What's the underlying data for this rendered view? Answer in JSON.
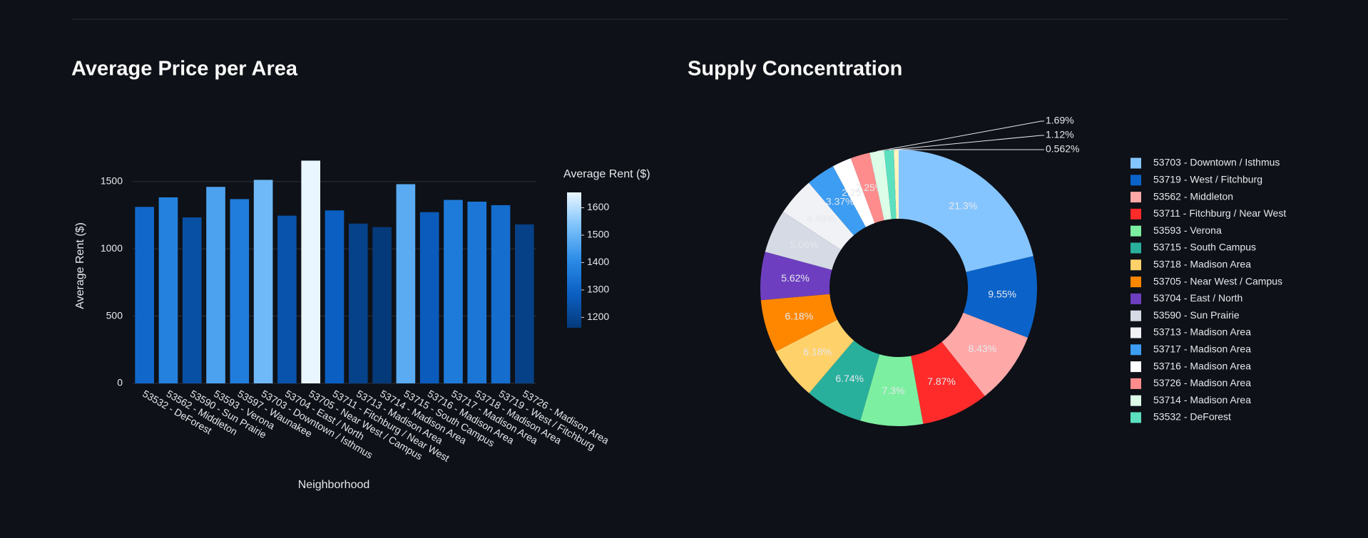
{
  "chart_data": [
    {
      "type": "bar",
      "title": "Average Price per Area",
      "x_label": "Neighborhood",
      "y_label": "Average Rent ($)",
      "categories": [
        "53532 - DeForest",
        "53562 - Middleton",
        "53590 - Sun Prairie",
        "53593 - Verona",
        "53597 - Waunakee",
        "53703 - Downtown / Isthmus",
        "53704 - East / North",
        "53705 - Near West / Campus",
        "53711 - Fitchburg / Near West",
        "53713 - Madison Area",
        "53714 - Madison Area",
        "53715 - South Campus",
        "53716 - Madison Area",
        "53717 - Madison Area",
        "53718 - Madison Area",
        "53719 - West / Fitchburg",
        "53726 - Madison Area"
      ],
      "values": [
        1312,
        1383,
        1234,
        1461,
        1370,
        1513,
        1247,
        1656,
        1286,
        1188,
        1162,
        1481,
        1273,
        1364,
        1351,
        1325,
        1182
      ],
      "ylim": [
        0,
        1743
      ],
      "yticks": [
        0,
        500,
        1000,
        1500
      ],
      "grid": true,
      "colorbar": {
        "title": "Average Rent ($)",
        "lim": [
          1162,
          1656
        ],
        "ticks": [
          1200,
          1300,
          1400,
          1500,
          1600
        ],
        "colors": [
          "#053a7a",
          "#0b5fc2",
          "#2b8be6",
          "#7cc2fb",
          "#eaf6ff"
        ]
      }
    },
    {
      "type": "pie",
      "title": "Supply Concentration",
      "hole": 0.5,
      "labels": [
        "53703 - Downtown / Isthmus",
        "53719 - West / Fitchburg",
        "53562 - Middleton",
        "53711 - Fitchburg / Near West",
        "53593 - Verona",
        "53715 - South Campus",
        "53718 - Madison Area",
        "53705 - Near West / Campus",
        "53704 - East / North",
        "53590 - Sun Prairie",
        "53713 - Madison Area",
        "53717 - Madison Area",
        "53716 - Madison Area",
        "53726 - Madison Area",
        "53714 - Madison Area",
        "53532 - DeForest",
        null
      ],
      "values": [
        21.3,
        9.55,
        8.43,
        7.87,
        7.3,
        6.74,
        6.18,
        6.18,
        5.62,
        5.06,
        4.49,
        3.37,
        2.25,
        2.25,
        1.69,
        1.12,
        0.562
      ],
      "value_labels": [
        "21.3%",
        "9.55%",
        "8.43%",
        "7.87%",
        "7.3%",
        "6.74%",
        "6.18%",
        "6.18%",
        "5.62%",
        "5.06%",
        "4.49%",
        "3.37%",
        "2.25%",
        "2.25%",
        "1.69%",
        "1.12%",
        "0.562%"
      ],
      "colors": [
        "#85c5ff",
        "#0b63c9",
        "#ffa8a8",
        "#ff2b2b",
        "#7defa1",
        "#29b09d",
        "#ffd16a",
        "#ff8700",
        "#6d3fc0",
        "#d5dae5",
        "#f0f2f6",
        "#3d9df3",
        "#ffffff",
        "#ff8c8c",
        "#dcfde8",
        "#5ce0c0",
        "#fff5c0"
      ]
    }
  ]
}
